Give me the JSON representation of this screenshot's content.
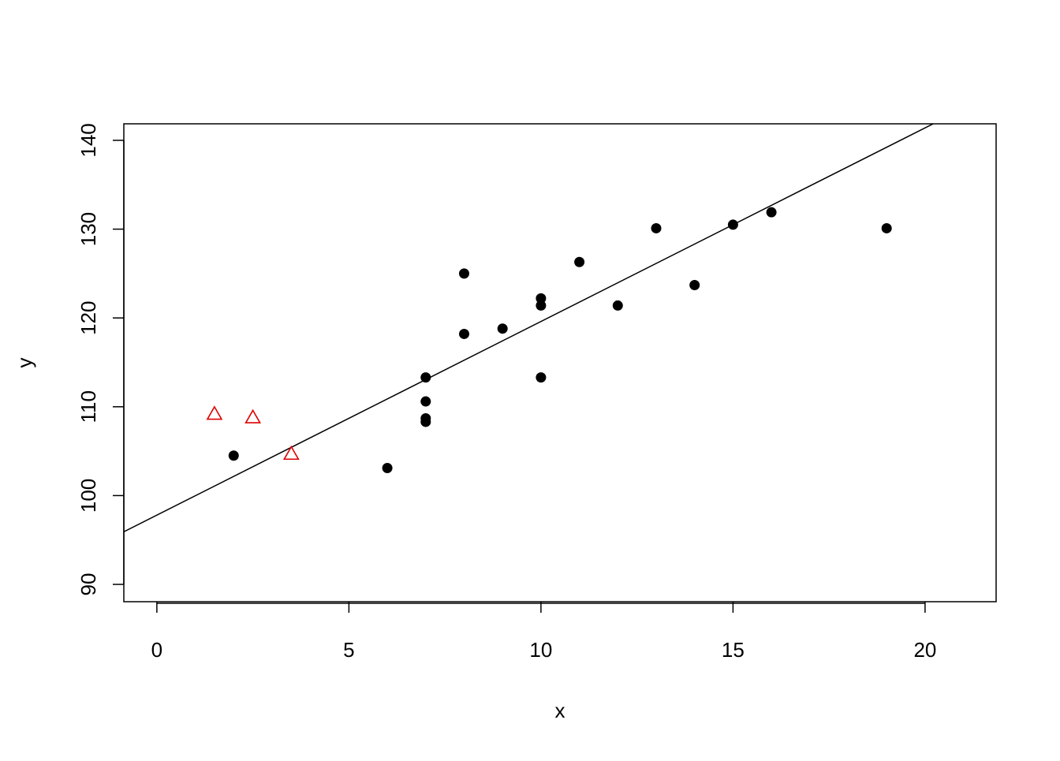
{
  "chart_data": {
    "type": "scatter",
    "xlabel": "x",
    "ylabel": "y",
    "xlim": [
      -0.86,
      21.85
    ],
    "ylim": [
      88.05,
      141.86
    ],
    "xticks": [
      0,
      5,
      10,
      15,
      20
    ],
    "yticks": [
      90,
      100,
      110,
      120,
      130,
      140
    ],
    "series": [
      {
        "color": "#000000",
        "marker": "circle",
        "x": [
          2,
          6,
          7,
          7,
          7,
          7,
          8,
          8,
          9,
          10,
          10,
          10,
          11,
          12,
          13,
          14,
          15,
          16,
          19
        ],
        "values": [
          104.5,
          103.1,
          113.3,
          110.6,
          108.7,
          108.3,
          125.0,
          118.2,
          118.8,
          122.2,
          121.4,
          113.3,
          126.3,
          121.4,
          130.1,
          123.7,
          130.5,
          131.9,
          130.1
        ]
      },
      {
        "color": "#dd0000",
        "marker": "triangle",
        "x": [
          1.5,
          2.5,
          3.5
        ],
        "values": [
          109.2,
          108.8,
          104.7
        ]
      }
    ],
    "abline": {
      "intercept": 97.8,
      "slope": 2.18,
      "color": "#000000"
    }
  }
}
